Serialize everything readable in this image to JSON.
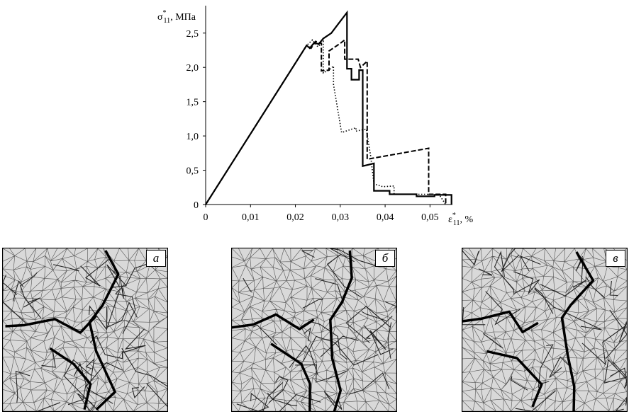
{
  "chart_data": {
    "type": "line",
    "title": "",
    "ylabel": {
      "symbol": "σ",
      "sup": "*",
      "sub": "11",
      "unit": ", МПа"
    },
    "xlabel": {
      "symbol": "ε",
      "sup": "*",
      "sub": "11",
      "unit": ", %"
    },
    "xlim": [
      0,
      0.055
    ],
    "ylim": [
      0,
      2.9
    ],
    "x_ticks": [
      {
        "value": 0,
        "label": "0"
      },
      {
        "value": 0.01,
        "label": "0,01"
      },
      {
        "value": 0.02,
        "label": "0,02"
      },
      {
        "value": 0.03,
        "label": "0,03"
      },
      {
        "value": 0.04,
        "label": "0,04"
      },
      {
        "value": 0.05,
        "label": "0,05"
      }
    ],
    "y_ticks": [
      {
        "value": 0,
        "label": "0"
      },
      {
        "value": 0.5,
        "label": "0,5"
      },
      {
        "value": 1.0,
        "label": "1,0"
      },
      {
        "value": 1.5,
        "label": "1,5"
      },
      {
        "value": 2.0,
        "label": "2,0"
      },
      {
        "value": 2.5,
        "label": "2,5"
      }
    ],
    "grid": false,
    "legend": "none",
    "series": [
      {
        "style": "solid",
        "points": [
          [
            0,
            0
          ],
          [
            0.0225,
            2.32
          ],
          [
            0.0232,
            2.28
          ],
          [
            0.0242,
            2.36
          ],
          [
            0.0252,
            2.34
          ],
          [
            0.0262,
            2.42
          ],
          [
            0.028,
            2.5
          ],
          [
            0.0295,
            2.63
          ],
          [
            0.0315,
            2.8
          ],
          [
            0.0315,
            1.98
          ],
          [
            0.0325,
            1.98
          ],
          [
            0.0325,
            1.82
          ],
          [
            0.0342,
            1.82
          ],
          [
            0.0342,
            1.96
          ],
          [
            0.035,
            1.96
          ],
          [
            0.035,
            0.56
          ],
          [
            0.0375,
            0.6
          ],
          [
            0.0375,
            0.2
          ],
          [
            0.041,
            0.2
          ],
          [
            0.041,
            0.15
          ],
          [
            0.047,
            0.15
          ],
          [
            0.047,
            0.12
          ],
          [
            0.051,
            0.12
          ],
          [
            0.051,
            0.14
          ],
          [
            0.0548,
            0.14
          ],
          [
            0.0548,
            0
          ]
        ]
      },
      {
        "style": "dashed",
        "points": [
          [
            0,
            0
          ],
          [
            0.0225,
            2.32
          ],
          [
            0.0235,
            2.28
          ],
          [
            0.0245,
            2.38
          ],
          [
            0.0258,
            2.35
          ],
          [
            0.0258,
            1.95
          ],
          [
            0.0275,
            1.96
          ],
          [
            0.0275,
            2.24
          ],
          [
            0.03,
            2.35
          ],
          [
            0.031,
            2.4
          ],
          [
            0.031,
            2.12
          ],
          [
            0.034,
            2.12
          ],
          [
            0.0345,
            2.0
          ],
          [
            0.036,
            2.09
          ],
          [
            0.036,
            0.66
          ],
          [
            0.0497,
            0.82
          ],
          [
            0.0497,
            0.15
          ],
          [
            0.0535,
            0.15
          ],
          [
            0.0535,
            0
          ]
        ]
      },
      {
        "style": "dotted",
        "points": [
          [
            0,
            0
          ],
          [
            0.0225,
            2.32
          ],
          [
            0.0238,
            2.4
          ],
          [
            0.025,
            2.3
          ],
          [
            0.0262,
            2.38
          ],
          [
            0.0262,
            1.92
          ],
          [
            0.0275,
            1.96
          ],
          [
            0.0285,
            2.02
          ],
          [
            0.0285,
            1.75
          ],
          [
            0.0303,
            1.05
          ],
          [
            0.0335,
            1.12
          ],
          [
            0.0335,
            1.07
          ],
          [
            0.0358,
            1.1
          ],
          [
            0.0368,
            0.7
          ],
          [
            0.0375,
            0.3
          ],
          [
            0.0395,
            0.26
          ],
          [
            0.042,
            0.27
          ],
          [
            0.042,
            0.15
          ],
          [
            0.052,
            0.15
          ],
          [
            0.0535,
            0
          ]
        ]
      }
    ]
  },
  "panels": [
    {
      "label": "а"
    },
    {
      "label": "б"
    },
    {
      "label": "в"
    }
  ]
}
